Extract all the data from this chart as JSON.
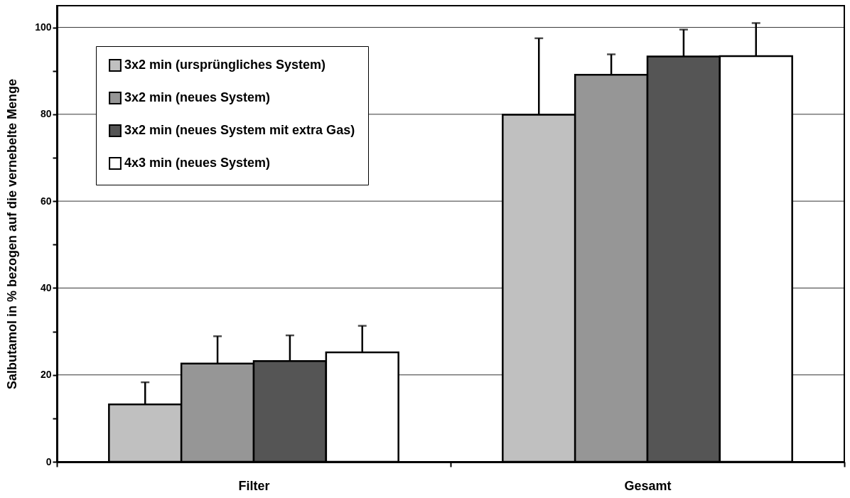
{
  "chart_data": {
    "type": "bar",
    "ylabel": "Salbutamol in % bezogen auf die vernebelte Menge",
    "categories": [
      "Filter",
      "Gesamt"
    ],
    "series": [
      {
        "name": "3x2 min (ursprüngliches System)",
        "color": "#c0c0c0",
        "values": [
          13.2,
          79.9
        ],
        "errors": [
          [
            13.2,
            18.3
          ],
          [
            79.9,
            97.5
          ]
        ]
      },
      {
        "name": "3x2 min (neues System)",
        "color": "#969696",
        "values": [
          22.6,
          89.1
        ],
        "errors": [
          [
            22.6,
            28.9
          ],
          [
            89.1,
            93.8
          ]
        ]
      },
      {
        "name": "3x2 min (neues System mit extra Gas)",
        "color": "#555555",
        "values": [
          23.2,
          93.3
        ],
        "errors": [
          [
            23.2,
            29.1
          ],
          [
            93.3,
            99.5
          ]
        ]
      },
      {
        "name": "4x3 min (neues System)",
        "color": "#ffffff",
        "values": [
          25.2,
          93.4
        ],
        "errors": [
          [
            25.2,
            31.3
          ],
          [
            93.4,
            101.0
          ]
        ]
      }
    ],
    "ylim": [
      0,
      105
    ],
    "yticks": [
      0,
      {
        "value": 10,
        "label": null
      },
      20,
      {
        "value": 30,
        "label": null
      },
      40,
      {
        "value": 50,
        "label": null
      },
      60,
      {
        "value": 70,
        "label": null
      },
      80,
      {
        "value": 90,
        "label": null
      },
      100
    ],
    "grid": "y",
    "legend": "top left"
  }
}
